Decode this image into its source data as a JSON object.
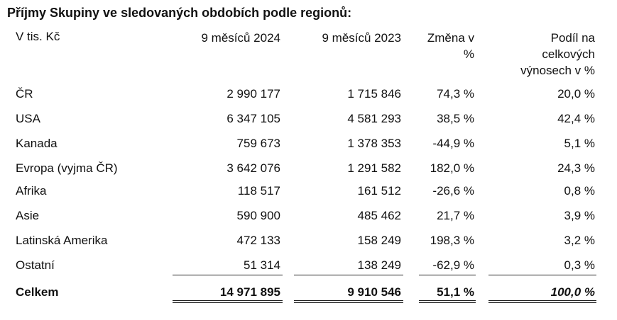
{
  "title": "Příjmy Skupiny ve sledovaných obdobích podle regionů:",
  "table": {
    "headers": [
      "V tis. Kč",
      "9 měsíců 2024",
      "9 měsíců 2023",
      "Změna v %",
      "Podíl na celkových výnosech v %"
    ],
    "rows": [
      [
        "ČR",
        "2 990 177",
        "1 715 846",
        "74,3 %",
        "20,0 %"
      ],
      [
        "USA",
        "6 347 105",
        "4 581 293",
        "38,5 %",
        "42,4 %"
      ],
      [
        "Kanada",
        "759 673",
        "1 378 353",
        "-44,9 %",
        "5,1 %"
      ],
      [
        "Evropa (vyjma ČR)",
        "3 642 076",
        "1 291 582",
        "182,0 %",
        "24,3 %"
      ],
      [
        "Afrika",
        "118 517",
        "161 512",
        "-26,6 %",
        "0,8 %"
      ],
      [
        "Asie",
        "590 900",
        "485 462",
        "21,7 %",
        "3,9 %"
      ],
      [
        "Latinská Amerika",
        "472 133",
        "158 249",
        "198,3 %",
        "3,2 %"
      ],
      [
        "Ostatní",
        "51 314",
        "138 249",
        "-62,9 %",
        "0,3 %"
      ]
    ],
    "total": [
      "Celkem",
      "14 971 895",
      "9 910 546",
      "51,1 %",
      "100,0 %"
    ]
  }
}
